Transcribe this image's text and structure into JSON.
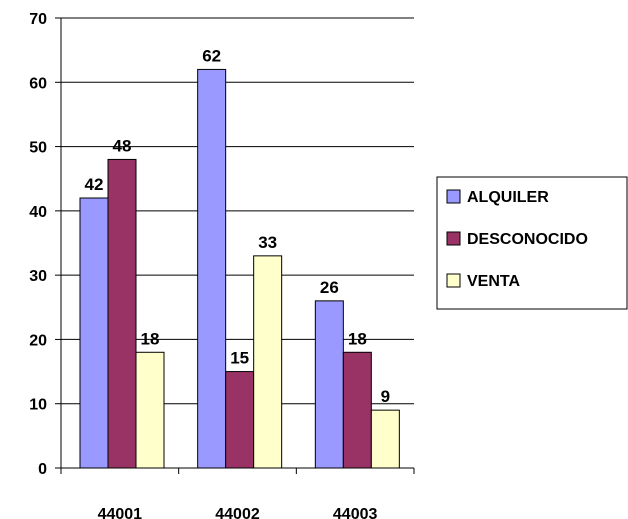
{
  "chart_data": {
    "type": "bar",
    "categories": [
      "44001",
      "44002",
      "44003"
    ],
    "series": [
      {
        "name": "ALQUILER",
        "values": [
          42,
          62,
          26
        ],
        "color": "#9999ff"
      },
      {
        "name": "DESCONOCIDO",
        "values": [
          48,
          15,
          18
        ],
        "color": "#993366"
      },
      {
        "name": "VENTA",
        "values": [
          18,
          33,
          9
        ],
        "color": "#ffffcc"
      }
    ],
    "ylim": [
      0,
      70
    ],
    "yticks": [
      0,
      10,
      20,
      30,
      40,
      50,
      60,
      70
    ],
    "grid": true,
    "legend": "right",
    "data_labels": true
  }
}
